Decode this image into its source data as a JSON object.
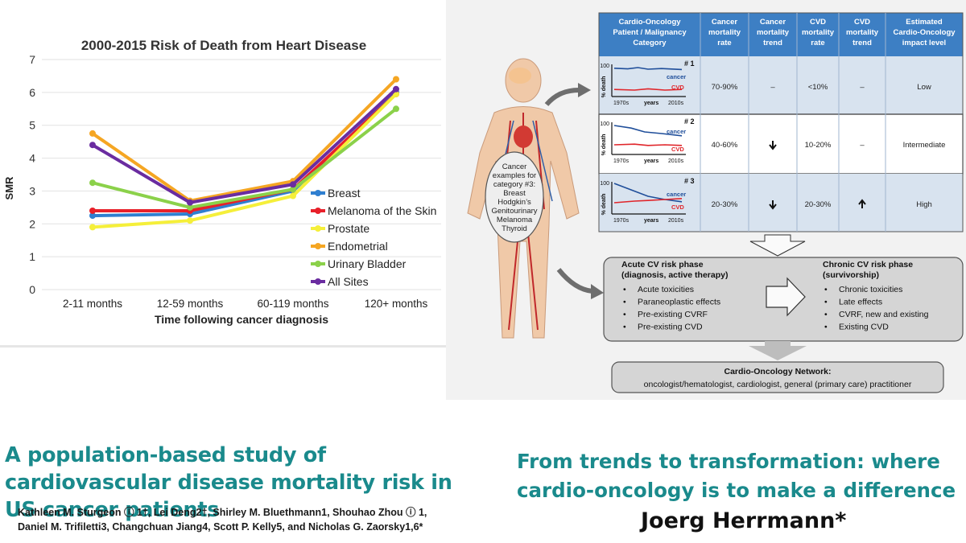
{
  "chart_data": {
    "type": "line",
    "title": "2000-2015 Risk of Death from Heart Disease",
    "xlabel": "Time following cancer diagnosis",
    "ylabel": "SMR",
    "categories": [
      "2-11 months",
      "12-59 months",
      "60-119 months",
      "120+ months"
    ],
    "ylim": [
      0,
      7
    ],
    "yticks": [
      "0",
      "1",
      "2",
      "3",
      "4",
      "5",
      "6",
      "7"
    ],
    "grid": true,
    "legend": "right",
    "series": [
      {
        "name": "Breast",
        "color": "#2f7fd0",
        "values": [
          2.25,
          2.3,
          3.0,
          6.0
        ]
      },
      {
        "name": "Melanoma of the Skin",
        "color": "#e8202a",
        "values": [
          2.4,
          2.4,
          3.05,
          5.95
        ]
      },
      {
        "name": "Prostate",
        "color": "#f5ef3a",
        "values": [
          1.9,
          2.1,
          2.85,
          5.95
        ]
      },
      {
        "name": "Endometrial",
        "color": "#f5a623",
        "values": [
          4.75,
          2.7,
          3.3,
          6.4
        ]
      },
      {
        "name": "Urinary Bladder",
        "color": "#8bd14a",
        "values": [
          3.25,
          2.5,
          3.05,
          5.5
        ]
      },
      {
        "name": "All Sites",
        "color": "#6a2ca0",
        "values": [
          4.4,
          2.65,
          3.2,
          6.1
        ]
      }
    ]
  },
  "figure": {
    "table_headers": [
      [
        "Cardio-Oncology",
        "Patient / Malignancy",
        "Category"
      ],
      [
        "Cancer",
        "mortality",
        "rate"
      ],
      [
        "Cancer",
        "mortality",
        "trend"
      ],
      [
        "CVD",
        "mortality",
        "rate"
      ],
      [
        "CVD",
        "mortality",
        "trend"
      ],
      [
        "Estimated",
        "Cardio-Oncology",
        "impact level"
      ]
    ],
    "rows": [
      {
        "num": "# 1",
        "cancer_rate": "70-90%",
        "cancer_trend": "–",
        "cvd_rate": "<10%",
        "cvd_trend": "–",
        "impact": "Low"
      },
      {
        "num": "# 2",
        "cancer_rate": "40-60%",
        "cancer_trend": "down",
        "cvd_rate": "10-20%",
        "cvd_trend": "–",
        "impact": "Intermediate"
      },
      {
        "num": "# 3",
        "cancer_rate": "20-30%",
        "cancer_trend": "down",
        "cvd_rate": "20-30%",
        "cvd_trend": "up",
        "impact": "High"
      }
    ],
    "mini_chart": {
      "y_max": "100",
      "ylabel": "% death",
      "x_start": "1970s",
      "x_mid": "years",
      "x_end": "2010s",
      "cancer_label": "cancer",
      "cvd_label": "CVD"
    },
    "body_callout": [
      "Cancer",
      "examples for",
      "category #3:",
      "Breast",
      "Hodgkin’s",
      "Genitourinary",
      "Melanoma",
      "Thyroid"
    ],
    "acute": {
      "title": [
        "Acute CV risk phase",
        "(diagnosis, active therapy)"
      ],
      "items": [
        "Acute toxicities",
        "Paraneoplastic effects",
        "Pre-existing CVRF",
        "Pre-existing CVD"
      ]
    },
    "chronic": {
      "title": [
        "Chronic CV risk phase",
        "(survivorship)"
      ],
      "items": [
        "Chronic toxicities",
        "Late effects",
        "CVRF, new and existing",
        "Existing CVD"
      ]
    },
    "network": {
      "title": "Cardio-Oncology Network:",
      "text": "oncologist/hematologist, cardiologist, general (primary care) practitioner"
    }
  },
  "left_title": "A population-based study of cardiovascular disease mortality risk in US cancer patients",
  "authors_line1": "Kathleen M. Sturgeon ⓘ 1†, Lei Deng2†, Shirley M. Bluethmann1, Shouhao Zhou ⓘ 1,",
  "authors_line2": "Daniel M. Trifiletti3, Changchuan Jiang4, Scott P. Kelly5, and Nicholas G. Zaorsky1,6*",
  "right_title_line1": "From trends to transformation: where",
  "right_title_line2": "cardio-oncology is to make a difference",
  "right_author": "Joerg Herrmann*"
}
